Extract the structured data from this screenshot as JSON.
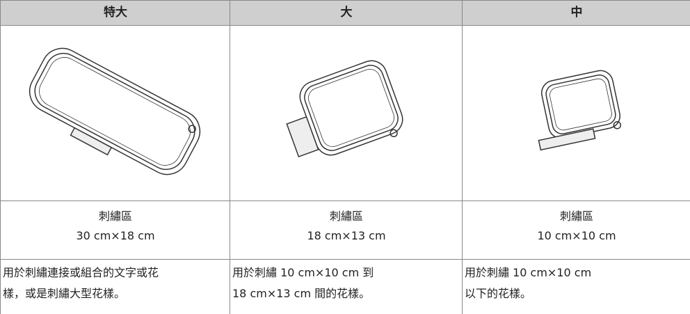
{
  "columns": [
    {
      "header": "特大",
      "area_label": "刺繡區",
      "area_size": "30 cm×18 cm",
      "description": [
        "用於刺繡連接或組合的文字或花",
        "樣，或是刺繡大型花樣。"
      ]
    },
    {
      "header": "大",
      "area_label": "刺繡區",
      "area_size": "18 cm×13 cm",
      "description": [
        "用於刺繡 10 cm×10 cm 到",
        "18 cm×13 cm 間的花樣。"
      ]
    },
    {
      "header": "中",
      "area_label": "刺繡區",
      "area_size": "10 cm×10 cm",
      "description": [
        "用於刺繡 10 cm×10 cm",
        "以下的花樣。"
      ]
    }
  ]
}
